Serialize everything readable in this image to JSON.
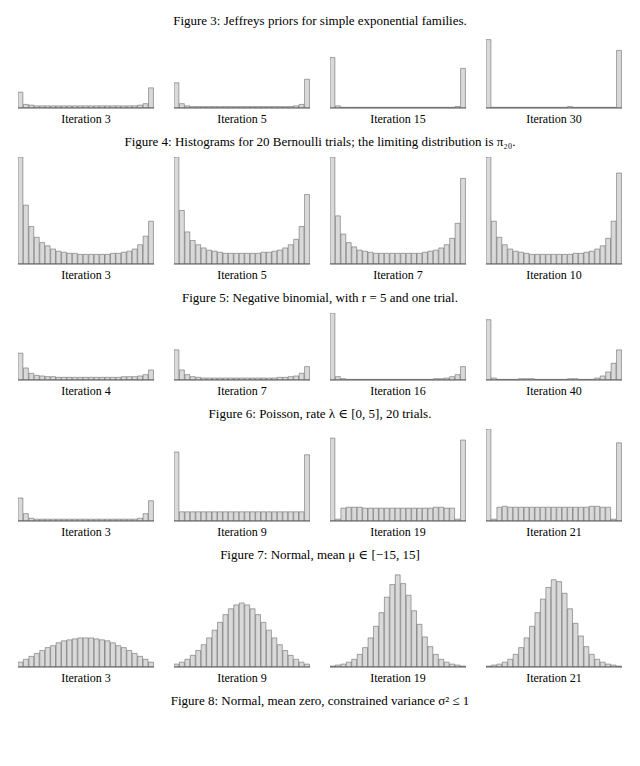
{
  "captions": [
    "Figure 3: Jeffreys priors for simple exponential families.",
    "Figure 4: Histograms for 20 Bernoulli trials; the limiting distribution is π₂₀.",
    "Figure 5: Negative binomial, with r = 5 and one trial.",
    "Figure 6: Poisson, rate λ ∈ [0, 5], 20 trials.",
    "Figure 7: Normal, mean μ ∈ [−15, 15]",
    "Figure 8: Normal, mean zero, constrained variance σ² ≤ 1"
  ],
  "chart_data": [
    {
      "type": "histogram",
      "title": "Iteration 3",
      "bins": [
        0,
        0.04,
        0.08,
        0.12,
        0.16,
        0.2,
        0.24,
        0.28,
        0.32,
        0.36,
        0.4,
        0.44,
        0.48,
        0.52,
        0.56,
        0.6,
        0.64,
        0.68,
        0.72,
        0.76,
        0.8,
        0.84,
        0.88,
        0.92,
        0.96,
        1
      ],
      "values": [
        22,
        5,
        4,
        3,
        3,
        3,
        3,
        3,
        3,
        3,
        3,
        3,
        3,
        3,
        3,
        3,
        3,
        3,
        3,
        3,
        3,
        3,
        4,
        6,
        28
      ],
      "xlim": [
        0,
        1
      ],
      "ylim": [
        0,
        100
      ],
      "color": "#d9d9d9",
      "tick_labels": false
    },
    {
      "type": "histogram",
      "title": "Iteration 5",
      "bins": [
        0,
        0.04,
        0.08,
        0.12,
        0.16,
        0.2,
        0.24,
        0.28,
        0.32,
        0.36,
        0.4,
        0.44,
        0.48,
        0.52,
        0.56,
        0.6,
        0.64,
        0.68,
        0.72,
        0.76,
        0.8,
        0.84,
        0.88,
        0.92,
        0.96,
        1
      ],
      "values": [
        35,
        6,
        3,
        2,
        2,
        2,
        2,
        2,
        2,
        2,
        2,
        2,
        2,
        2,
        2,
        2,
        2,
        2,
        2,
        2,
        2,
        2,
        3,
        5,
        40
      ],
      "xlim": [
        0,
        1
      ],
      "ylim": [
        0,
        100
      ],
      "color": "#d9d9d9",
      "tick_labels": false
    },
    {
      "type": "histogram",
      "title": "Iteration 15",
      "bins": [
        0,
        0.04,
        0.08,
        0.12,
        0.16,
        0.2,
        0.24,
        0.28,
        0.32,
        0.36,
        0.4,
        0.44,
        0.48,
        0.52,
        0.56,
        0.6,
        0.64,
        0.68,
        0.72,
        0.76,
        0.8,
        0.84,
        0.88,
        0.92,
        0.96,
        1
      ],
      "values": [
        70,
        3,
        1,
        1,
        1,
        1,
        1,
        1,
        1,
        1,
        1,
        1,
        1,
        1,
        1,
        1,
        1,
        1,
        1,
        1,
        1,
        1,
        1,
        2,
        55
      ],
      "xlim": [
        0,
        1
      ],
      "ylim": [
        0,
        100
      ],
      "color": "#d9d9d9",
      "tick_labels": false
    },
    {
      "type": "histogram",
      "title": "Iteration 30",
      "bins": [
        0,
        0.04,
        0.08,
        0.12,
        0.16,
        0.2,
        0.24,
        0.28,
        0.32,
        0.36,
        0.4,
        0.44,
        0.48,
        0.52,
        0.56,
        0.6,
        0.64,
        0.68,
        0.72,
        0.76,
        0.8,
        0.84,
        0.88,
        0.92,
        0.96,
        1
      ],
      "values": [
        95,
        1,
        1,
        1,
        1,
        1,
        1,
        1,
        1,
        1,
        1,
        1,
        1,
        1,
        1,
        2,
        1,
        1,
        1,
        1,
        1,
        1,
        1,
        1,
        80
      ],
      "xlim": [
        0,
        1
      ],
      "ylim": [
        0,
        100
      ],
      "color": "#d9d9d9",
      "tick_labels": false
    },
    {
      "type": "histogram",
      "title": "Iteration 3",
      "bins": [
        0,
        0.04,
        0.08,
        0.12,
        0.16,
        0.2,
        0.24,
        0.28,
        0.32,
        0.36,
        0.4,
        0.44,
        0.48,
        0.52,
        0.56,
        0.6,
        0.64,
        0.68,
        0.72,
        0.76,
        0.8,
        0.84,
        0.88,
        0.92,
        0.96,
        1
      ],
      "values": [
        100,
        55,
        35,
        25,
        20,
        17,
        14,
        12,
        11,
        10,
        10,
        9,
        9,
        9,
        9,
        9,
        9,
        10,
        10,
        11,
        12,
        14,
        18,
        26,
        40
      ],
      "xlim": [
        0,
        1
      ],
      "ylim": [
        0,
        100
      ],
      "color": "#d9d9d9",
      "tick_labels": false
    },
    {
      "type": "histogram",
      "title": "Iteration 5",
      "bins": [
        0,
        0.04,
        0.08,
        0.12,
        0.16,
        0.2,
        0.24,
        0.28,
        0.32,
        0.36,
        0.4,
        0.44,
        0.48,
        0.52,
        0.56,
        0.6,
        0.64,
        0.68,
        0.72,
        0.76,
        0.8,
        0.84,
        0.88,
        0.92,
        0.96,
        1
      ],
      "values": [
        100,
        50,
        30,
        22,
        18,
        15,
        13,
        12,
        11,
        10,
        10,
        10,
        10,
        10,
        10,
        10,
        11,
        11,
        12,
        13,
        15,
        18,
        23,
        35,
        65
      ],
      "xlim": [
        0,
        1
      ],
      "ylim": [
        0,
        100
      ],
      "color": "#d9d9d9",
      "tick_labels": false
    },
    {
      "type": "histogram",
      "title": "Iteration 7",
      "bins": [
        0,
        0.04,
        0.08,
        0.12,
        0.16,
        0.2,
        0.24,
        0.28,
        0.32,
        0.36,
        0.4,
        0.44,
        0.48,
        0.52,
        0.56,
        0.6,
        0.64,
        0.68,
        0.72,
        0.76,
        0.8,
        0.84,
        0.88,
        0.92,
        0.96,
        1
      ],
      "values": [
        100,
        45,
        28,
        20,
        16,
        13,
        12,
        11,
        10,
        10,
        10,
        10,
        10,
        10,
        10,
        10,
        10,
        11,
        12,
        13,
        15,
        18,
        24,
        38,
        80
      ],
      "xlim": [
        0,
        1
      ],
      "ylim": [
        0,
        100
      ],
      "color": "#d9d9d9",
      "tick_labels": false
    },
    {
      "type": "histogram",
      "title": "Iteration 10",
      "bins": [
        0,
        0.04,
        0.08,
        0.12,
        0.16,
        0.2,
        0.24,
        0.28,
        0.32,
        0.36,
        0.4,
        0.44,
        0.48,
        0.52,
        0.56,
        0.6,
        0.64,
        0.68,
        0.72,
        0.76,
        0.8,
        0.84,
        0.88,
        0.92,
        0.96,
        1
      ],
      "values": [
        100,
        40,
        25,
        18,
        14,
        12,
        11,
        10,
        9,
        9,
        9,
        9,
        9,
        9,
        9,
        9,
        10,
        10,
        11,
        12,
        14,
        17,
        24,
        40,
        85
      ],
      "xlim": [
        0,
        1
      ],
      "ylim": [
        0,
        100
      ],
      "color": "#d9d9d9",
      "tick_labels": false
    },
    {
      "type": "histogram",
      "title": "Iteration 4",
      "bins": [
        0,
        0.2,
        0.4,
        0.6,
        0.8,
        1,
        1.2,
        1.4,
        1.6,
        1.8,
        2,
        2.2,
        2.4,
        2.6,
        2.8,
        3,
        3.2,
        3.4,
        3.6,
        3.8,
        4,
        4.2,
        4.4,
        4.6,
        4.8,
        5
      ],
      "values": [
        40,
        18,
        10,
        7,
        6,
        5,
        5,
        4,
        4,
        4,
        4,
        4,
        4,
        4,
        4,
        4,
        4,
        4,
        4,
        5,
        5,
        5,
        6,
        8,
        15
      ],
      "xlim": [
        0,
        5
      ],
      "ylim": [
        0,
        100
      ],
      "color": "#d9d9d9",
      "tick_labels": false
    },
    {
      "type": "histogram",
      "title": "Iteration 7",
      "bins": [
        0,
        0.2,
        0.4,
        0.6,
        0.8,
        1,
        1.2,
        1.4,
        1.6,
        1.8,
        2,
        2.2,
        2.4,
        2.6,
        2.8,
        3,
        3.2,
        3.4,
        3.6,
        3.8,
        4,
        4.2,
        4.4,
        4.6,
        4.8,
        5
      ],
      "values": [
        45,
        15,
        8,
        5,
        4,
        3,
        3,
        3,
        3,
        3,
        3,
        3,
        3,
        3,
        3,
        3,
        3,
        3,
        3,
        4,
        4,
        5,
        6,
        10,
        20
      ],
      "xlim": [
        0,
        5
      ],
      "ylim": [
        0,
        100
      ],
      "color": "#d9d9d9",
      "tick_labels": false
    },
    {
      "type": "histogram",
      "title": "Iteration 16",
      "bins": [
        0,
        0.2,
        0.4,
        0.6,
        0.8,
        1,
        1.2,
        1.4,
        1.6,
        1.8,
        2,
        2.2,
        2.4,
        2.6,
        2.8,
        3,
        3.2,
        3.4,
        3.6,
        3.8,
        4,
        4.2,
        4.4,
        4.6,
        4.8,
        5
      ],
      "values": [
        100,
        5,
        2,
        1,
        1,
        1,
        1,
        1,
        1,
        1,
        1,
        1,
        1,
        1,
        1,
        1,
        1,
        1,
        1,
        2,
        2,
        3,
        5,
        8,
        20
      ],
      "xlim": [
        0,
        5
      ],
      "ylim": [
        0,
        100
      ],
      "color": "#d9d9d9",
      "tick_labels": false
    },
    {
      "type": "histogram",
      "title": "Iteration 40",
      "bins": [
        0,
        0.2,
        0.4,
        0.6,
        0.8,
        1,
        1.2,
        1.4,
        1.6,
        1.8,
        2,
        2.2,
        2.4,
        2.6,
        2.8,
        3,
        3.2,
        3.4,
        3.6,
        3.8,
        4,
        4.2,
        4.4,
        4.6,
        4.8,
        5
      ],
      "values": [
        90,
        3,
        1,
        1,
        1,
        1,
        2,
        2,
        2,
        1,
        1,
        1,
        1,
        1,
        1,
        2,
        2,
        1,
        1,
        1,
        3,
        6,
        12,
        25,
        45
      ],
      "xlim": [
        0,
        5
      ],
      "ylim": [
        0,
        100
      ],
      "color": "#d9d9d9",
      "tick_labels": false
    },
    {
      "type": "histogram",
      "title": "Iteration 3",
      "bins": [
        -15,
        -13.8,
        -12.6,
        -11.4,
        -10.2,
        -9,
        -7.8,
        -6.6,
        -5.4,
        -4.2,
        -3,
        -1.8,
        -0.6,
        0.6,
        1.8,
        3,
        4.2,
        5.4,
        6.6,
        7.8,
        9,
        10.2,
        11.4,
        12.6,
        13.8,
        15
      ],
      "values": [
        25,
        8,
        3,
        2,
        2,
        2,
        2,
        2,
        2,
        2,
        2,
        2,
        2,
        2,
        2,
        2,
        2,
        2,
        2,
        2,
        2,
        2,
        3,
        8,
        22
      ],
      "xlim": [
        -15,
        15
      ],
      "ylim": [
        0,
        100
      ],
      "color": "#d9d9d9",
      "tick_labels": false
    },
    {
      "type": "histogram",
      "title": "Iteration 9",
      "bins": [
        -15,
        -13.8,
        -12.6,
        -11.4,
        -10.2,
        -9,
        -7.8,
        -6.6,
        -5.4,
        -4.2,
        -3,
        -1.8,
        -0.6,
        0.6,
        1.8,
        3,
        4.2,
        5.4,
        6.6,
        7.8,
        9,
        10.2,
        11.4,
        12.6,
        13.8,
        15
      ],
      "values": [
        75,
        10,
        10,
        10,
        10,
        10,
        10,
        10,
        10,
        10,
        10,
        10,
        10,
        10,
        10,
        10,
        10,
        10,
        10,
        10,
        10,
        10,
        10,
        10,
        72
      ],
      "xlim": [
        -15,
        15
      ],
      "ylim": [
        0,
        100
      ],
      "color": "#d9d9d9",
      "tick_labels": false
    },
    {
      "type": "histogram",
      "title": "Iteration 19",
      "bins": [
        -15,
        -13.8,
        -12.6,
        -11.4,
        -10.2,
        -9,
        -7.8,
        -6.6,
        -5.4,
        -4.2,
        -3,
        -1.8,
        -0.6,
        0.6,
        1.8,
        3,
        4.2,
        5.4,
        6.6,
        7.8,
        9,
        10.2,
        11.4,
        12.6,
        13.8,
        15
      ],
      "values": [
        90,
        2,
        14,
        15,
        15,
        15,
        14,
        14,
        14,
        14,
        14,
        14,
        14,
        14,
        14,
        14,
        14,
        14,
        14,
        15,
        15,
        14,
        14,
        2,
        88
      ],
      "xlim": [
        -15,
        15
      ],
      "ylim": [
        0,
        100
      ],
      "color": "#d9d9d9",
      "tick_labels": false
    },
    {
      "type": "histogram",
      "title": "Iteration 21",
      "bins": [
        -15,
        -13.8,
        -12.6,
        -11.4,
        -10.2,
        -9,
        -7.8,
        -6.6,
        -5.4,
        -4.2,
        -3,
        -1.8,
        -0.6,
        0.6,
        1.8,
        3,
        4.2,
        5.4,
        6.6,
        7.8,
        9,
        10.2,
        11.4,
        12.6,
        13.8,
        15
      ],
      "values": [
        100,
        2,
        15,
        16,
        15,
        15,
        15,
        15,
        15,
        15,
        15,
        15,
        15,
        15,
        15,
        15,
        15,
        15,
        15,
        16,
        16,
        15,
        15,
        2,
        85
      ],
      "xlim": [
        -15,
        15
      ],
      "ylim": [
        0,
        100
      ],
      "color": "#d9d9d9",
      "tick_labels": false
    },
    {
      "type": "histogram",
      "title": "Iteration 3",
      "bins": [
        0,
        0.04,
        0.08,
        0.12,
        0.16,
        0.2,
        0.24,
        0.28,
        0.32,
        0.36,
        0.4,
        0.44,
        0.48,
        0.52,
        0.56,
        0.6,
        0.64,
        0.68,
        0.72,
        0.76,
        0.8,
        0.84,
        0.88,
        0.92,
        0.96,
        1
      ],
      "values": [
        5,
        8,
        11,
        14,
        17,
        20,
        22,
        25,
        27,
        28,
        29,
        30,
        30,
        30,
        29,
        28,
        27,
        25,
        22,
        20,
        17,
        14,
        11,
        8,
        5
      ],
      "xlim": [
        0,
        1
      ],
      "ylim": [
        0,
        100
      ],
      "color": "#d9d9d9",
      "tick_labels": false
    },
    {
      "type": "histogram",
      "title": "Iteration 9",
      "bins": [
        0,
        0.04,
        0.08,
        0.12,
        0.16,
        0.2,
        0.24,
        0.28,
        0.32,
        0.36,
        0.4,
        0.44,
        0.48,
        0.52,
        0.56,
        0.6,
        0.64,
        0.68,
        0.72,
        0.76,
        0.8,
        0.84,
        0.88,
        0.92,
        0.96,
        1
      ],
      "values": [
        3,
        5,
        8,
        12,
        17,
        23,
        30,
        38,
        46,
        54,
        60,
        64,
        66,
        64,
        60,
        54,
        46,
        38,
        30,
        23,
        17,
        12,
        8,
        5,
        3
      ],
      "xlim": [
        0,
        1
      ],
      "ylim": [
        0,
        100
      ],
      "color": "#d9d9d9",
      "tick_labels": false
    },
    {
      "type": "histogram",
      "title": "Iteration 19",
      "bins": [
        0,
        0.04,
        0.08,
        0.12,
        0.16,
        0.2,
        0.24,
        0.28,
        0.32,
        0.36,
        0.4,
        0.44,
        0.48,
        0.52,
        0.56,
        0.6,
        0.64,
        0.68,
        0.72,
        0.76,
        0.8,
        0.84,
        0.88,
        0.92,
        0.96,
        1
      ],
      "values": [
        1,
        2,
        3,
        5,
        8,
        13,
        20,
        30,
        42,
        56,
        72,
        85,
        95,
        86,
        74,
        58,
        44,
        31,
        21,
        13,
        8,
        5,
        3,
        2,
        1
      ],
      "xlim": [
        0,
        1
      ],
      "ylim": [
        0,
        100
      ],
      "color": "#d9d9d9",
      "tick_labels": false
    },
    {
      "type": "histogram",
      "title": "Iteration 21",
      "bins": [
        0,
        0.04,
        0.08,
        0.12,
        0.16,
        0.2,
        0.24,
        0.28,
        0.32,
        0.36,
        0.4,
        0.44,
        0.48,
        0.52,
        0.56,
        0.6,
        0.64,
        0.68,
        0.72,
        0.76,
        0.8,
        0.84,
        0.88,
        0.92,
        0.96,
        1
      ],
      "values": [
        1,
        2,
        3,
        5,
        8,
        13,
        20,
        30,
        42,
        56,
        70,
        82,
        90,
        88,
        76,
        60,
        45,
        32,
        21,
        13,
        8,
        5,
        3,
        2,
        1
      ],
      "xlim": [
        0,
        1
      ],
      "ylim": [
        0,
        100
      ],
      "color": "#d9d9d9",
      "tick_labels": false
    }
  ]
}
